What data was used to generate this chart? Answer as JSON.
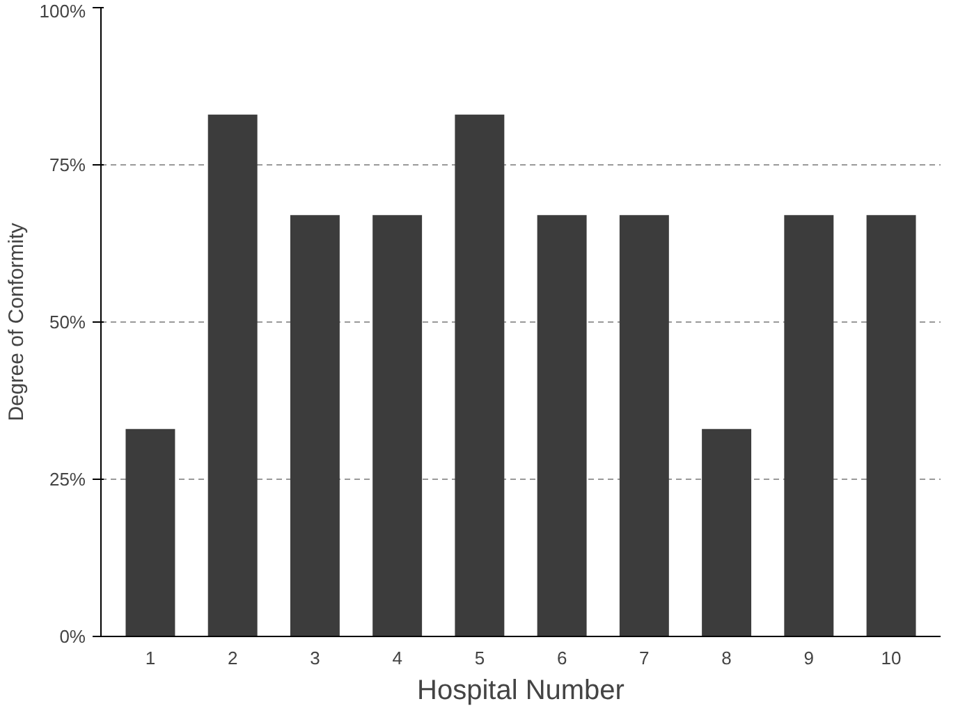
{
  "chart_data": {
    "type": "bar",
    "xlabel": "Hospital Number",
    "ylabel": "Degree of Conformity",
    "categories": [
      "1",
      "2",
      "3",
      "4",
      "5",
      "6",
      "7",
      "8",
      "9",
      "10"
    ],
    "values": [
      33,
      83,
      67,
      67,
      83,
      67,
      67,
      33,
      67,
      67
    ],
    "color": "#3c3c3c",
    "ylim": [
      0,
      100
    ],
    "yticks": [
      {
        "value": 0,
        "label": "0%"
      },
      {
        "value": 25,
        "label": "25%"
      },
      {
        "value": 50,
        "label": "50%"
      },
      {
        "value": 75,
        "label": "75%"
      },
      {
        "value": 100,
        "label": "100%"
      }
    ],
    "grid": "y"
  }
}
